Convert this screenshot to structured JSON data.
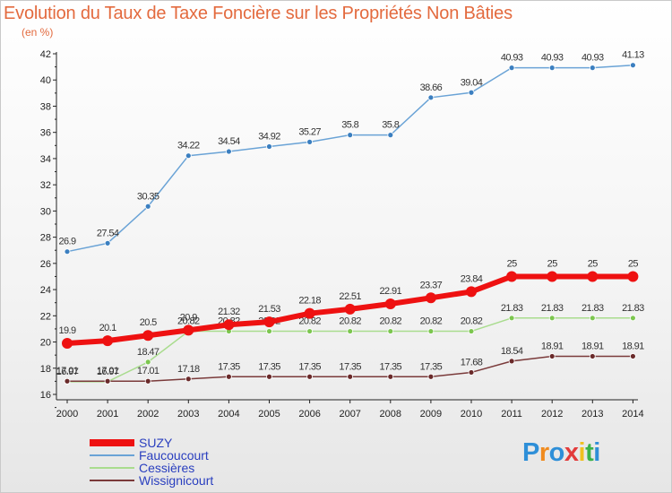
{
  "title": "Evolution du Taux de Taxe Foncière sur les Propriétés Non Bâties",
  "unit_label": "(en %)",
  "logo": {
    "text": "Proxiti",
    "colors": [
      "#2e8fd8",
      "#f08b1f",
      "#2e8fd8",
      "#e23b3b",
      "#f0c020",
      "#3bb24a",
      "#2e8fd8"
    ]
  },
  "chart_data": {
    "type": "line",
    "title": "Evolution du Taux de Taxe Foncière sur les Propriétés Non Bâties",
    "ylabel": "(en %)",
    "x": [
      "2000",
      "2001",
      "2002",
      "2003",
      "2004",
      "2005",
      "2006",
      "2007",
      "2008",
      "2009",
      "2010",
      "2011",
      "2012",
      "2013",
      "2014"
    ],
    "ylim": [
      16,
      42
    ],
    "yticks": [
      16,
      18,
      20,
      22,
      24,
      26,
      28,
      30,
      32,
      34,
      36,
      38,
      40,
      42
    ],
    "grid": false,
    "legend_position": "bottom-left",
    "series": [
      {
        "name": "Faucoucourt",
        "color": "#6aa3d6",
        "marker": "#3b7fc0",
        "values": [
          26.9,
          27.54,
          30.35,
          34.22,
          34.54,
          34.92,
          35.27,
          35.8,
          35.8,
          38.66,
          39.04,
          40.93,
          40.93,
          40.93,
          41.13
        ],
        "labels": [
          "26.9",
          "27.54",
          "30.35",
          "34.22",
          "34.54",
          "34.92",
          "35.27",
          "35.8",
          "35.8",
          "38.66",
          "39.04",
          "40.93",
          "40.93",
          "40.93",
          "41.13"
        ]
      },
      {
        "name": "Cessières",
        "color": "#a9dc8e",
        "marker": "#7cc64f",
        "values": [
          16.97,
          16.97,
          18.47,
          20.82,
          20.82,
          20.82,
          20.82,
          20.82,
          20.82,
          20.82,
          20.82,
          21.83,
          21.83,
          21.83,
          21.83
        ],
        "labels": [
          "16.97",
          "16.97",
          "18.47",
          "20.82",
          "20.82",
          "20.82",
          "20.82",
          "20.82",
          "20.82",
          "20.82",
          "20.82",
          "21.83",
          "21.83",
          "21.83",
          "21.83"
        ]
      },
      {
        "name": "Wissignicourt",
        "color": "#7a3a3a",
        "marker": "#6a2a2a",
        "values": [
          17.01,
          17.01,
          17.01,
          17.18,
          17.35,
          17.35,
          17.35,
          17.35,
          17.35,
          17.35,
          17.68,
          18.54,
          18.91,
          18.91,
          18.91
        ],
        "labels": [
          "17.01",
          "17.01",
          "17.01",
          "17.18",
          "17.35",
          "17.35",
          "17.35",
          "17.35",
          "17.35",
          "17.35",
          "17.68",
          "18.54",
          "18.91",
          "18.91",
          "18.91"
        ]
      },
      {
        "name": "SUZY",
        "color": "#ee1111",
        "marker": "#ee1111",
        "thick": true,
        "values": [
          19.9,
          20.1,
          20.5,
          20.9,
          21.32,
          21.53,
          22.18,
          22.51,
          22.91,
          23.37,
          23.84,
          25,
          25,
          25,
          25
        ],
        "labels": [
          "19.9",
          "20.1",
          "20.5",
          "20.9",
          "21.32",
          "21.53",
          "22.18",
          "22.51",
          "22.91",
          "23.37",
          "23.84",
          "25",
          "25",
          "25",
          "25"
        ]
      }
    ]
  },
  "legend": [
    {
      "name": "SUZY",
      "color": "#ee1111",
      "thick": true
    },
    {
      "name": "Faucoucourt",
      "color": "#6aa3d6"
    },
    {
      "name": "Cessières",
      "color": "#a9dc8e"
    },
    {
      "name": "Wissignicourt",
      "color": "#7a3a3a"
    }
  ]
}
